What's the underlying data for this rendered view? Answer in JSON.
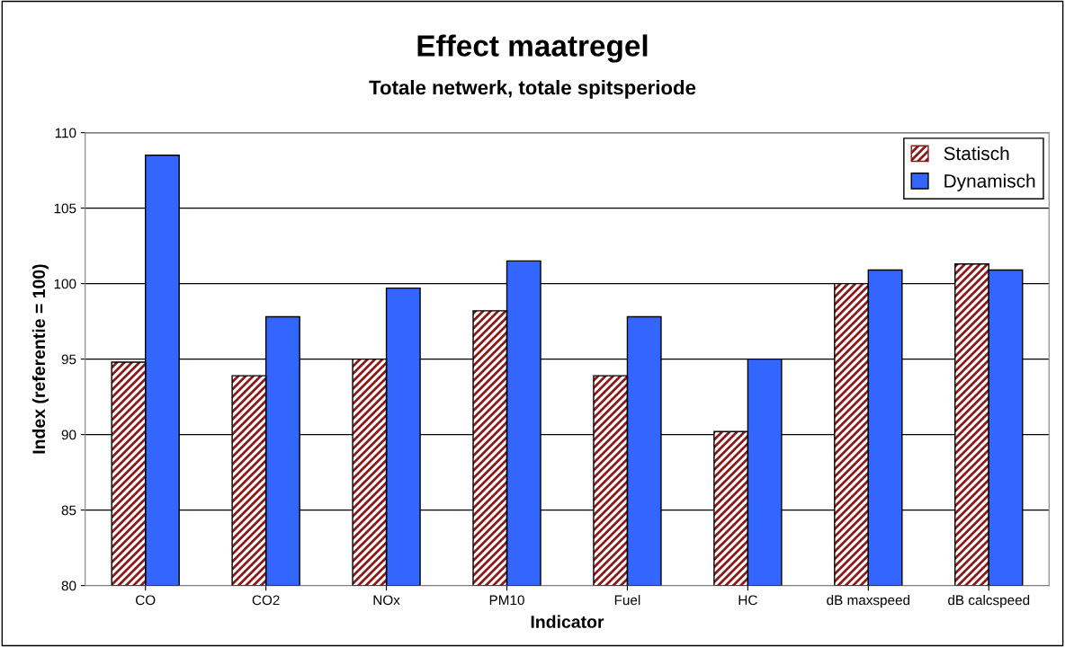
{
  "chart_data": {
    "type": "bar",
    "title": "Effect maatregel",
    "subtitle": "Totale netwerk, totale spitsperiode",
    "xlabel": "Indicator",
    "ylabel": "Index (referentie = 100)",
    "categories": [
      "CO",
      "CO2",
      "NOx",
      "PM10",
      "Fuel",
      "HC",
      "dB maxspeed",
      "dB calcspeed"
    ],
    "series": [
      {
        "name": "Statisch",
        "color": "#8b1a1a",
        "values": [
          94.8,
          93.9,
          95.0,
          98.2,
          93.9,
          90.2,
          100.0,
          101.3
        ]
      },
      {
        "name": "Dynamisch",
        "color": "#3366ff",
        "values": [
          108.5,
          97.8,
          99.7,
          101.5,
          97.8,
          95.0,
          100.9,
          100.9
        ]
      }
    ],
    "ylim": [
      80,
      110
    ],
    "yticks": [
      80,
      85,
      90,
      95,
      100,
      105,
      110
    ],
    "grid": "y",
    "legend": "top right"
  }
}
